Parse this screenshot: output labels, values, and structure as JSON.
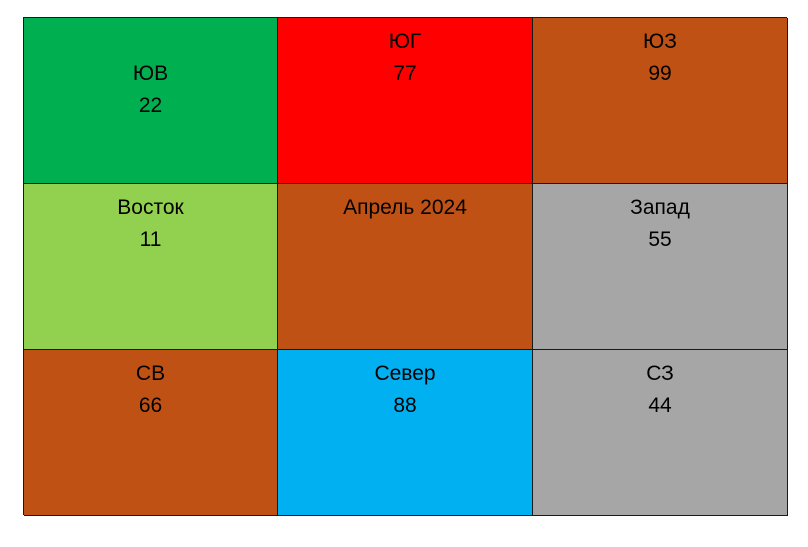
{
  "colors": {
    "green": "#00b050",
    "red": "#ff0000",
    "brown": "#c05114",
    "lightgreen": "#92d050",
    "gray": "#a6a6a6",
    "cyan": "#00b0f0"
  },
  "cells": {
    "se": {
      "label": "ЮВ",
      "value": "22",
      "color": "#00b050"
    },
    "s": {
      "label": "ЮГ",
      "value": "77",
      "color": "#ff0000"
    },
    "sw": {
      "label": "ЮЗ",
      "value": "99",
      "color": "#c05114"
    },
    "e": {
      "label": "Восток",
      "value": "11",
      "color": "#92d050"
    },
    "c": {
      "label": "Апрель 2024",
      "color": "#c05114"
    },
    "w": {
      "label": "Запад",
      "value": "55",
      "color": "#a6a6a6"
    },
    "ne": {
      "label": "СВ",
      "value": "66",
      "color": "#c05114"
    },
    "n": {
      "label": "Север",
      "value": "88",
      "color": "#00b0f0"
    },
    "nw": {
      "label": "СЗ",
      "value": "44",
      "color": "#a6a6a6"
    }
  }
}
